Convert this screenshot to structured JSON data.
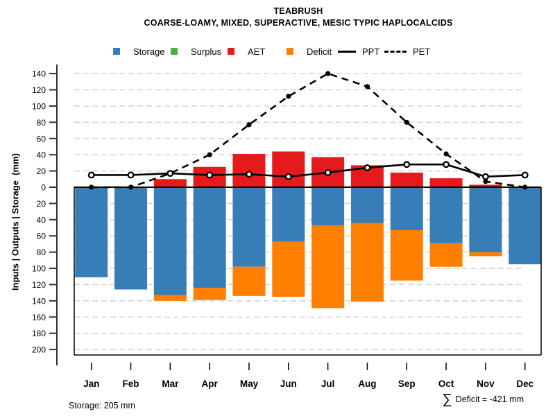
{
  "title": "TEABRUSH",
  "subtitle": "COARSE-LOAMY, MIXED, SUPERACTIVE, MESIC TYPIC HAPLOCALCIDS",
  "y_axis_label": "Inputs | Outputs | Storage  (mm)",
  "annotations": {
    "storage_note": "Storage: 205 mm",
    "deficit_sigma": "∑",
    "deficit_note": "Deficit = -421 mm"
  },
  "colors": {
    "storage": "#377EB8",
    "surplus": "#4DAF4A",
    "aet": "#E41A1C",
    "deficit": "#FF7F00",
    "line": "#000000",
    "grid": "#CFCFCF",
    "axis": "#303030"
  },
  "legend": {
    "items": [
      {
        "label": "Storage",
        "kind": "swatch",
        "color_key": "storage"
      },
      {
        "label": "Surplus",
        "kind": "swatch",
        "color_key": "surplus"
      },
      {
        "label": "AET",
        "kind": "swatch",
        "color_key": "aet"
      },
      {
        "label": "Deficit",
        "kind": "swatch",
        "color_key": "deficit"
      },
      {
        "label": "PPT",
        "kind": "solid-line"
      },
      {
        "label": "PET",
        "kind": "dashed-line"
      }
    ]
  },
  "chart_data": {
    "type": "bar",
    "subtype": "monthly-water-balance-with-lines",
    "categories": [
      "Jan",
      "Feb",
      "Mar",
      "Apr",
      "May",
      "Jun",
      "Jul",
      "Aug",
      "Sep",
      "Oct",
      "Nov",
      "Dec"
    ],
    "series": [
      {
        "name": "Storage",
        "type": "bar",
        "direction": "below-zero",
        "color_key": "storage",
        "values": [
          111,
          126,
          133,
          124,
          98,
          67,
          47,
          44,
          53,
          69,
          80,
          95
        ]
      },
      {
        "name": "Surplus",
        "type": "bar",
        "direction": "above-zero-stacked-on-aet",
        "color_key": "surplus",
        "values": [
          0,
          0,
          0,
          0,
          0,
          0,
          0,
          0,
          0,
          0,
          0,
          0
        ]
      },
      {
        "name": "AET",
        "type": "bar",
        "direction": "above-zero",
        "color_key": "aet",
        "values": [
          0,
          0,
          10,
          25,
          41,
          44,
          37,
          27,
          18,
          11,
          3,
          0
        ]
      },
      {
        "name": "Deficit",
        "type": "bar",
        "direction": "below-zero-stacked-on-storage",
        "color_key": "deficit",
        "values": [
          0,
          0,
          7,
          15,
          36,
          68,
          102,
          97,
          62,
          29,
          5,
          0
        ]
      },
      {
        "name": "PPT",
        "type": "line",
        "style": "solid",
        "marker": "open-circle",
        "color_key": "line",
        "values": [
          15,
          15,
          17,
          15,
          16,
          13,
          18,
          24,
          28,
          28,
          13,
          15
        ]
      },
      {
        "name": "PET",
        "type": "line",
        "style": "dashed",
        "marker": "filled-circle",
        "color_key": "line",
        "values": [
          0,
          0,
          17,
          40,
          77,
          112,
          140,
          124,
          80,
          41,
          7,
          0
        ]
      }
    ],
    "ylabel": "Inputs | Outputs | Storage  (mm)",
    "y_ticks_mm": [
      140,
      120,
      100,
      80,
      60,
      40,
      20,
      0,
      -20,
      -40,
      -60,
      -80,
      -100,
      -120,
      -140,
      -160,
      -180,
      -200
    ],
    "y_tick_labels_absolute_value": true,
    "ylim": [
      -206,
      146
    ],
    "grid": "dashed-horizontal",
    "legend_position": "top"
  }
}
